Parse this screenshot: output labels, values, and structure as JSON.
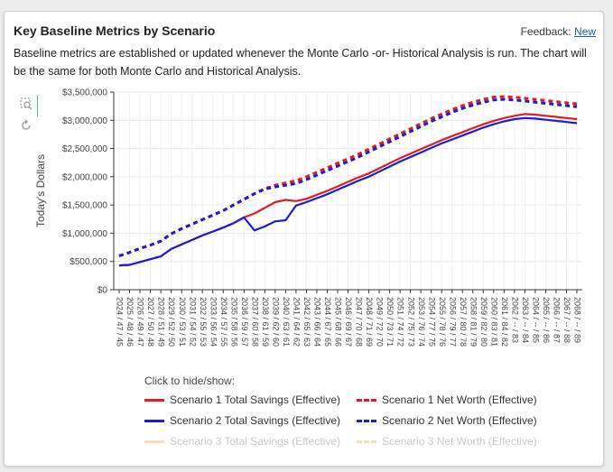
{
  "header": {
    "title": "Key Baseline Metrics by Scenario",
    "feedback_label": "Feedback:",
    "feedback_link": "New"
  },
  "description": "Baseline metrics are established or updated whenever the Monte Carlo -or- Historical Analysis is run. The chart will be the same for both Monte Carlo and Historical Analysis.",
  "toolbar": {
    "zoom_icon": "zoom-icon",
    "reset_icon": "reset-icon"
  },
  "legend": {
    "title": "Click to hide/show:",
    "items": [
      {
        "label": "Scenario 1 Total Savings (Effective)",
        "color": "#e01b24",
        "dash": false,
        "hidden": false
      },
      {
        "label": "Scenario 1 Net Worth (Effective)",
        "color": "#e01b24",
        "dash": true,
        "hidden": false
      },
      {
        "label": "Scenario 2 Total Savings (Effective)",
        "color": "#1c1cd6",
        "dash": false,
        "hidden": false
      },
      {
        "label": "Scenario 2 Net Worth (Effective)",
        "color": "#1c1cd6",
        "dash": true,
        "hidden": false
      },
      {
        "label": "Scenario 3 Total Savings (Effective)",
        "color": "#f5deb3",
        "dash": false,
        "hidden": true
      },
      {
        "label": "Scenario 3 Net Worth (Effective)",
        "color": "#f5deb3",
        "dash": true,
        "hidden": true
      }
    ]
  },
  "chart_data": {
    "type": "line",
    "ylabel": "Today's Dollars",
    "ylim": [
      0,
      3500000
    ],
    "yticks": [
      0,
      500000,
      1000000,
      1500000,
      2000000,
      2500000,
      3000000,
      3500000
    ],
    "ytick_labels": [
      "$0",
      "$500,000",
      "$1,000,000",
      "$1,500,000",
      "$2,000,000",
      "$2,500,000",
      "$3,000,000",
      "$3,500,000"
    ],
    "grid": true,
    "categories": [
      "2024 / 47 / 45",
      "2025 / 48 / 46",
      "2026 / 49 / 47",
      "2027 / 50 / 48",
      "2028 / 51 / 49",
      "2029 / 52 / 50",
      "2030 / 53 / 51",
      "2031 / 54 / 52",
      "2032 / 55 / 53",
      "2033 / 56 / 54",
      "2034 / 57 / 55",
      "2035 / 58 / 56",
      "2036 / 59 / 57",
      "2037 / 60 / 58",
      "2038 / 61 / 59",
      "2039 / 62 / 60",
      "2040 / 63 / 61",
      "2041 / 64 / 62",
      "2042 / 65 / 63",
      "2043 / 66 / 64",
      "2044 / 67 / 65",
      "2045 / 68 / 66",
      "2046 / 69 / 67",
      "2047 / 70 / 68",
      "2048 / 71 / 69",
      "2049 / 72 / 70",
      "2050 / 73 / 71",
      "2051 / 74 / 72",
      "2052 / 75 / 73",
      "2053 / 76 / 74",
      "2054 / 77 / 75",
      "2055 / 78 / 76",
      "2056 / 79 / 77",
      "2057 / 80 / 78",
      "2058 / 81 / 79",
      "2059 / 82 / 80",
      "2060 / 83 / 81",
      "2061 / 84 / 82",
      "2062 / -- / 83",
      "2063 / -- / 84",
      "2064 / -- / 85",
      "2065 / -- / 86",
      "2066 / -- / 87",
      "2067 / -- / 88",
      "2068 / -- / 89"
    ],
    "series": [
      {
        "name": "Scenario 1 Total Savings (Effective)",
        "color": "#e01b24",
        "dash": false,
        "values": [
          430000,
          440000,
          490000,
          540000,
          590000,
          720000,
          800000,
          880000,
          960000,
          1030000,
          1100000,
          1180000,
          1280000,
          1350000,
          1450000,
          1550000,
          1590000,
          1570000,
          1610000,
          1680000,
          1750000,
          1830000,
          1910000,
          1990000,
          2060000,
          2150000,
          2240000,
          2330000,
          2410000,
          2490000,
          2570000,
          2650000,
          2720000,
          2790000,
          2860000,
          2930000,
          2990000,
          3040000,
          3080000,
          3110000,
          3100000,
          3080000,
          3060000,
          3040000,
          3020000
        ]
      },
      {
        "name": "Scenario 1 Net Worth (Effective)",
        "color": "#e01b24",
        "dash": true,
        "values": [
          600000,
          660000,
          730000,
          790000,
          860000,
          990000,
          1080000,
          1160000,
          1240000,
          1320000,
          1400000,
          1500000,
          1600000,
          1700000,
          1790000,
          1850000,
          1890000,
          1930000,
          2000000,
          2080000,
          2160000,
          2240000,
          2320000,
          2400000,
          2490000,
          2580000,
          2670000,
          2760000,
          2850000,
          2940000,
          3030000,
          3110000,
          3190000,
          3260000,
          3320000,
          3370000,
          3410000,
          3420000,
          3410000,
          3390000,
          3370000,
          3350000,
          3330000,
          3310000,
          3290000
        ]
      },
      {
        "name": "Scenario 2 Total Savings (Effective)",
        "color": "#1c1cd6",
        "dash": false,
        "values": [
          430000,
          440000,
          490000,
          540000,
          590000,
          720000,
          800000,
          880000,
          960000,
          1030000,
          1100000,
          1180000,
          1280000,
          1050000,
          1120000,
          1210000,
          1230000,
          1490000,
          1550000,
          1620000,
          1690000,
          1770000,
          1850000,
          1930000,
          2000000,
          2090000,
          2180000,
          2270000,
          2350000,
          2430000,
          2510000,
          2590000,
          2660000,
          2730000,
          2800000,
          2870000,
          2930000,
          2980000,
          3020000,
          3040000,
          3030000,
          3010000,
          2990000,
          2970000,
          2950000
        ]
      },
      {
        "name": "Scenario 2 Net Worth (Effective)",
        "color": "#1c1cd6",
        "dash": true,
        "values": [
          600000,
          660000,
          730000,
          790000,
          860000,
          990000,
          1080000,
          1160000,
          1240000,
          1320000,
          1400000,
          1500000,
          1600000,
          1700000,
          1780000,
          1820000,
          1850000,
          1880000,
          1950000,
          2030000,
          2110000,
          2190000,
          2270000,
          2350000,
          2440000,
          2530000,
          2620000,
          2710000,
          2800000,
          2890000,
          2980000,
          3060000,
          3140000,
          3210000,
          3270000,
          3320000,
          3360000,
          3370000,
          3360000,
          3340000,
          3320000,
          3300000,
          3280000,
          3260000,
          3240000
        ]
      }
    ]
  }
}
